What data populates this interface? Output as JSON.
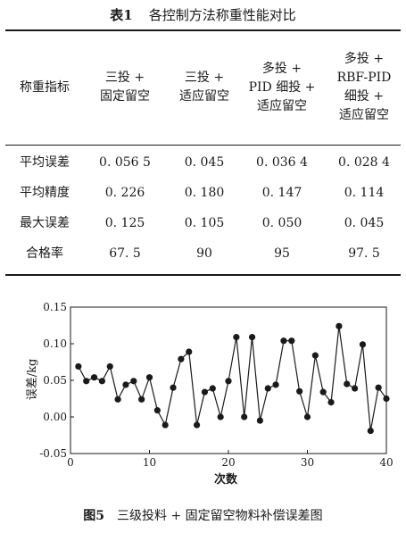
{
  "table": {
    "caption_label": "表1",
    "caption_text": "各控制方法称重性能对比",
    "headers": [
      [
        "称重指标"
      ],
      [
        "三投 +",
        "固定留空"
      ],
      [
        "三投 +",
        "适应留空"
      ],
      [
        "多投 +",
        "PID 细投 +",
        "适应留空"
      ],
      [
        "多投 +",
        "RBF-PID",
        "细投 +",
        "适应留空"
      ]
    ],
    "rows": [
      [
        "平均误差",
        "0. 056 5",
        "0. 045",
        "0. 036 4",
        "0. 028 4"
      ],
      [
        "平均精度",
        "0. 226",
        "0. 180",
        "0. 147",
        "0. 114"
      ],
      [
        "最大误差",
        "0. 125",
        "0. 105",
        "0. 050",
        "0. 045"
      ],
      [
        "合格率",
        "67. 5",
        "90",
        "95",
        "97. 5"
      ]
    ]
  },
  "figure": {
    "caption_label": "图5",
    "caption_text": "三级投料 + 固定留空物料补偿误差图"
  },
  "chart_data": {
    "type": "line",
    "xlabel": "次数",
    "ylabel": "误差/kg",
    "xlim": [
      0,
      40
    ],
    "ylim": [
      -0.05,
      0.15
    ],
    "x_ticks": [
      0,
      10,
      20,
      30,
      40
    ],
    "y_ticks": [
      -0.05,
      0.0,
      0.05,
      0.1,
      0.15
    ],
    "x_tick_labels": [
      "0",
      "10",
      "20",
      "30",
      "40"
    ],
    "y_tick_labels": [
      "-0.05",
      "0.00",
      "0.05",
      "0.10",
      "0.15"
    ],
    "grid": false,
    "series": [
      {
        "x": [
          1,
          2,
          3,
          4,
          5,
          6,
          7,
          8,
          9,
          10,
          11,
          12,
          13,
          14,
          15,
          16,
          17,
          18,
          19,
          20,
          21,
          22,
          23,
          24,
          25,
          26,
          27,
          28,
          29,
          30,
          31,
          32,
          33,
          34,
          35,
          36,
          37,
          38,
          39,
          40
        ],
        "values": [
          0.069,
          0.049,
          0.054,
          0.049,
          0.069,
          0.024,
          0.044,
          0.049,
          0.024,
          0.054,
          0.009,
          -0.011,
          0.04,
          0.079,
          0.089,
          -0.011,
          0.034,
          0.039,
          0.0,
          0.049,
          0.109,
          0.0,
          0.109,
          -0.005,
          0.039,
          0.044,
          0.104,
          0.104,
          0.035,
          0.0,
          0.084,
          0.034,
          0.02,
          0.124,
          0.045,
          0.039,
          0.099,
          -0.019,
          0.04,
          0.025
        ]
      }
    ]
  }
}
